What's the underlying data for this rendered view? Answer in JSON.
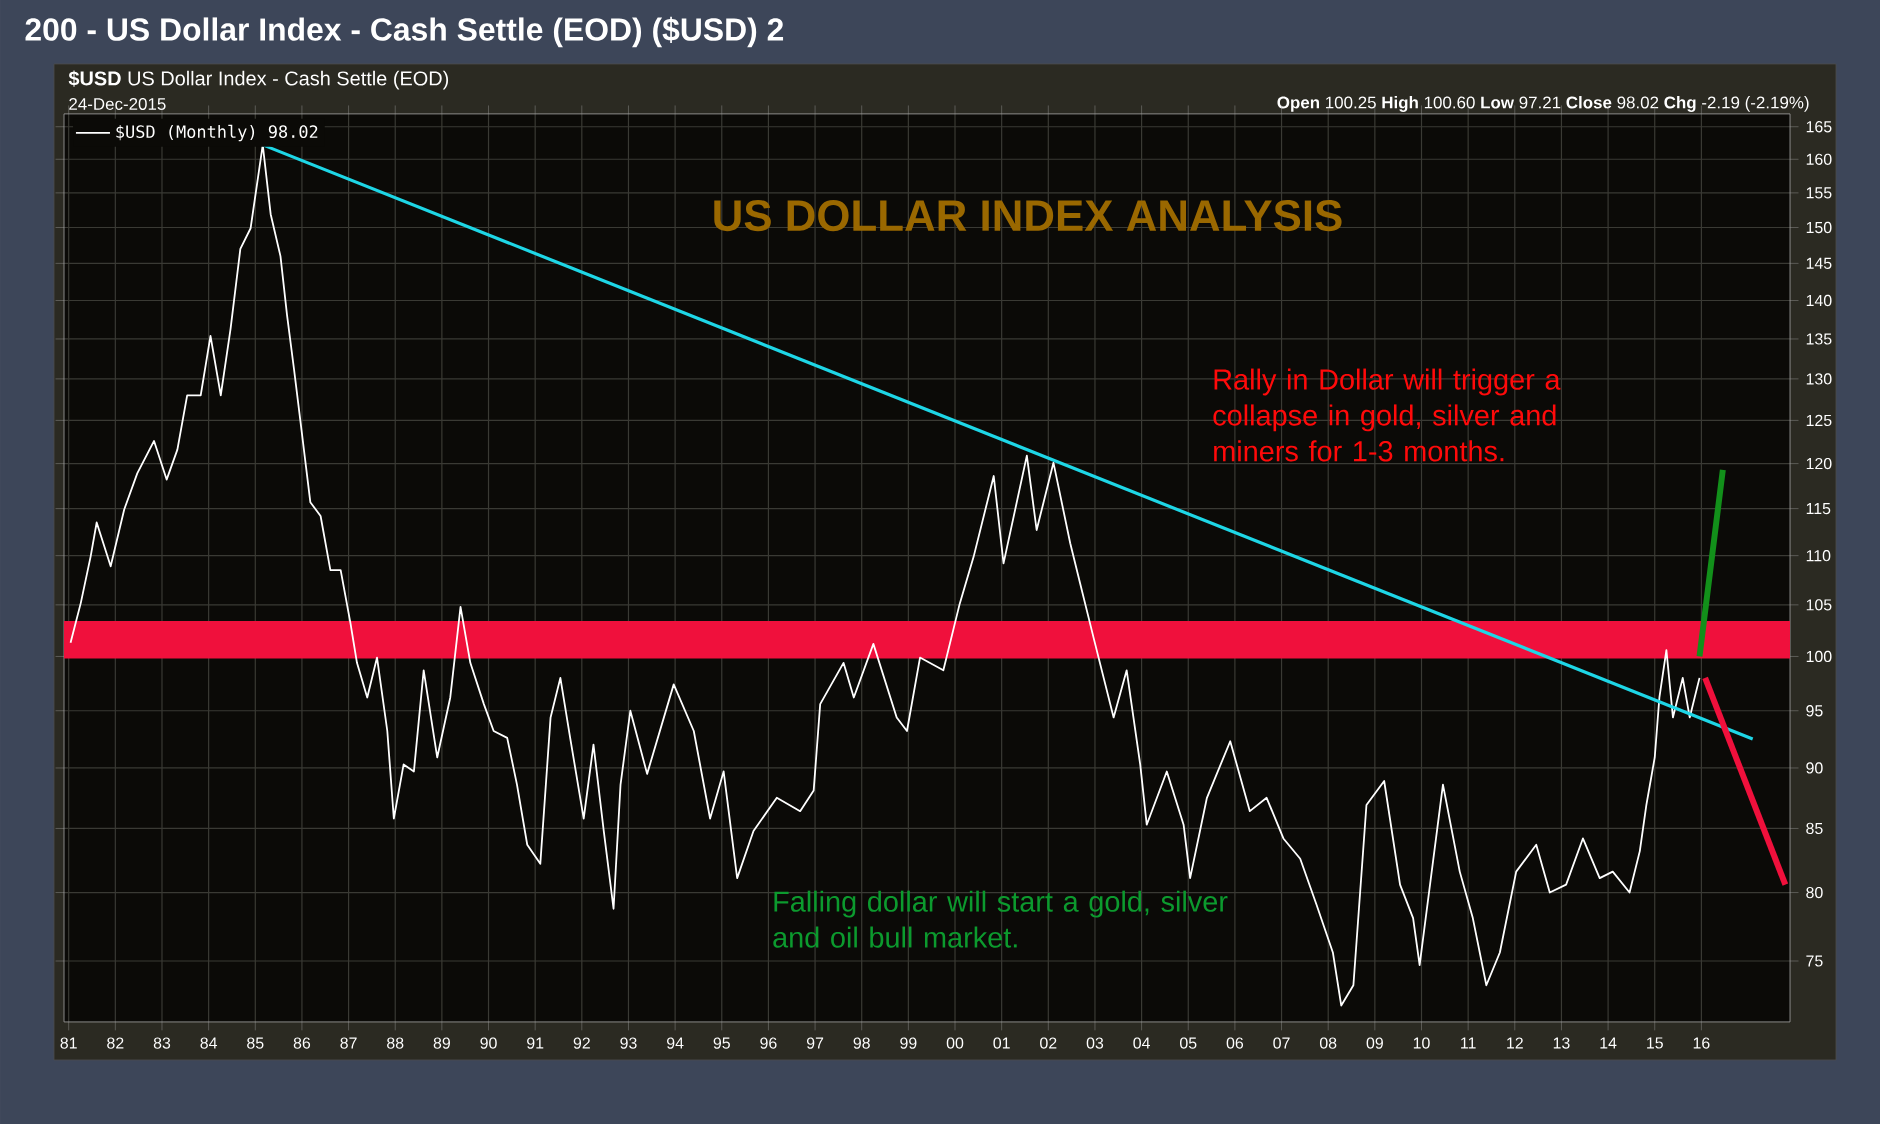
{
  "chart_data": {
    "type": "line",
    "title": "200 - US Dollar Index - Cash Settle (EOD) ($USD) 2",
    "subtitle": "**$USD** US Dollar Index - Cash Settle (EOD)",
    "annotations": [
      "24-Dec-2015",
      "**Open** 100.25 **High** 100.60 **Low** 97.21 **Close** 98.02 **Chg** -2.19 (-2.19%)",
      "US DOLLAR INDEX ANALYSIS",
      "Rally in Dollar will trigger a collapse in gold, silver and miners for 1-3 months.",
      "Falling dollar will start a gold, silver and oil bull market."
    ],
    "series": [
      {
        "name": "$USD (Monthly) 98.02",
        "color": "#ffffff",
        "x": [
          1981.04,
          1981.26,
          1981.47,
          1981.6,
          1981.9,
          1982.19,
          1982.47,
          1982.83,
          1983.1,
          1983.33,
          1983.54,
          1983.83,
          1984.04,
          1984.26,
          1984.47,
          1984.68,
          1984.9,
          1985.16,
          1985.33,
          1985.54,
          1985.68,
          1985.83,
          1985.97,
          1986.18,
          1986.4,
          1986.61,
          1986.83,
          1987.04,
          1987.18,
          1987.4,
          1987.61,
          1987.83,
          1987.97,
          1988.18,
          1988.4,
          1988.61,
          1988.9,
          1989.18,
          1989.4,
          1989.61,
          1989.9,
          1990.11,
          1990.4,
          1990.61,
          1990.83,
          1991.11,
          1991.33,
          1991.54,
          1991.75,
          1992.04,
          1992.25,
          1992.47,
          1992.68,
          1992.83,
          1993.04,
          1993.4,
          1993.97,
          1994.4,
          1994.75,
          1995.04,
          1995.33,
          1995.68,
          1996.18,
          1996.68,
          1996.97,
          1997.11,
          1997.61,
          1997.83,
          1998.25,
          1998.75,
          1998.97,
          1999.25,
          1999.75,
          2000.1,
          2000.4,
          2000.83,
          2001.04,
          2001.54,
          2001.75,
          2002.11,
          2002.47,
          2002.68,
          2002.97,
          2003.4,
          2003.68,
          2003.97,
          2004.11,
          2004.54,
          2004.9,
          2005.04,
          2005.4,
          2005.9,
          2006.32,
          2006.68,
          2007.04,
          2007.4,
          2007.75,
          2008.1,
          2008.28,
          2008.54,
          2008.82,
          2009.2,
          2009.54,
          2009.82,
          2009.96,
          2010.46,
          2010.82,
          2011.1,
          2011.39,
          2011.68,
          2012.03,
          2012.46,
          2012.75,
          2013.1,
          2013.46,
          2013.82,
          2014.1,
          2014.46,
          2014.68,
          2014.82,
          2015.0,
          2015.1,
          2015.25,
          2015.39,
          2015.6,
          2015.75,
          2015.96
        ],
        "values": [
          101.3,
          105.2,
          109.9,
          113.5,
          108.9,
          114.9,
          118.9,
          122.6,
          118.2,
          121.6,
          128,
          128,
          135.4,
          128,
          136.3,
          147,
          149.9,
          162.2,
          151.9,
          146,
          138.1,
          131.2,
          124.8,
          115.7,
          114.2,
          108.5,
          108.5,
          103.2,
          99.4,
          96.2,
          99.9,
          93.2,
          85.8,
          90.3,
          89.7,
          98.7,
          90.9,
          96.2,
          104.8,
          99.4,
          95.6,
          93.2,
          92.6,
          88.6,
          83.7,
          82.2,
          94.4,
          98,
          92.6,
          85.8,
          92,
          84.8,
          78.8,
          88.6,
          95,
          89.5,
          97.4,
          93.2,
          85.8,
          89.7,
          81.1,
          84.8,
          87.5,
          86.4,
          88.1,
          95.6,
          99.4,
          96.2,
          101.2,
          94.4,
          93.2,
          99.9,
          98.7,
          105.1,
          109.9,
          118.6,
          109.2,
          120.9,
          112.7,
          120.1,
          111.3,
          107.2,
          101.8,
          94.4,
          98.7,
          90.3,
          85.3,
          89.7,
          85.3,
          81.1,
          87.5,
          92.3,
          86.4,
          87.5,
          84.2,
          82.6,
          79.1,
          75.6,
          71.9,
          73.3,
          86.9,
          88.9,
          80.6,
          78.1,
          74.7,
          88.6,
          81.6,
          78.1,
          73.3,
          75.6,
          81.6,
          83.7,
          80,
          80.6,
          84.2,
          81.1,
          81.6,
          80,
          83.2,
          86.9,
          90.9,
          96.2,
          100.6,
          94.4,
          98,
          94.4,
          98
        ]
      },
      {
        "color": "#1ed6e6",
        "x": [
          1985.16,
          2017.1
        ],
        "values": [
          162.2,
          92.5
        ]
      },
      {
        "color": "#12901a",
        "x": [
          2015.96,
          2016.46
        ],
        "values": [
          100,
          119.3
        ]
      },
      {
        "color": "#f0103c",
        "x": [
          2016.08,
          2017.8
        ],
        "values": [
          98,
          80.6
        ]
      }
    ],
    "bands": [
      {
        "axis": "y",
        "from": 99.8,
        "to": 103.4,
        "color": "#f0103c"
      }
    ],
    "xlim": [
      1980.9,
      2017.9
    ],
    "ylim": [
      70.8,
      167
    ],
    "xticks": [
      {
        "value": 1981,
        "label": "81"
      },
      {
        "value": 1982,
        "label": "82"
      },
      {
        "value": 1983,
        "label": "83"
      },
      {
        "value": 1984,
        "label": "84"
      },
      {
        "value": 1985,
        "label": "85"
      },
      {
        "value": 1986,
        "label": "86"
      },
      {
        "value": 1987,
        "label": "87"
      },
      {
        "value": 1988,
        "label": "88"
      },
      {
        "value": 1989,
        "label": "89"
      },
      {
        "value": 1990,
        "label": "90"
      },
      {
        "value": 1991,
        "label": "91"
      },
      {
        "value": 1992,
        "label": "92"
      },
      {
        "value": 1993,
        "label": "93"
      },
      {
        "value": 1994,
        "label": "94"
      },
      {
        "value": 1995,
        "label": "95"
      },
      {
        "value": 1996,
        "label": "96"
      },
      {
        "value": 1997,
        "label": "97"
      },
      {
        "value": 1998,
        "label": "98"
      },
      {
        "value": 1999,
        "label": "99"
      },
      {
        "value": 2000,
        "label": "00"
      },
      {
        "value": 2001,
        "label": "01"
      },
      {
        "value": 2002,
        "label": "02"
      },
      {
        "value": 2003,
        "label": "03"
      },
      {
        "value": 2004,
        "label": "04"
      },
      {
        "value": 2005,
        "label": "05"
      },
      {
        "value": 2006,
        "label": "06"
      },
      {
        "value": 2007,
        "label": "07"
      },
      {
        "value": 2008,
        "label": "08"
      },
      {
        "value": 2009,
        "label": "09"
      },
      {
        "value": 2010,
        "label": "10"
      },
      {
        "value": 2011,
        "label": "11"
      },
      {
        "value": 2012,
        "label": "12"
      },
      {
        "value": 2013,
        "label": "13"
      },
      {
        "value": 2014,
        "label": "14"
      },
      {
        "value": 2015,
        "label": "15"
      },
      {
        "value": 2016,
        "label": "16"
      }
    ],
    "yticks": [
      75,
      80,
      85,
      90,
      95,
      100,
      105,
      110,
      115,
      120,
      125,
      130,
      135,
      140,
      145,
      150,
      155,
      160,
      165
    ],
    "log": "y",
    "grid": true,
    "legend": "top left"
  }
}
